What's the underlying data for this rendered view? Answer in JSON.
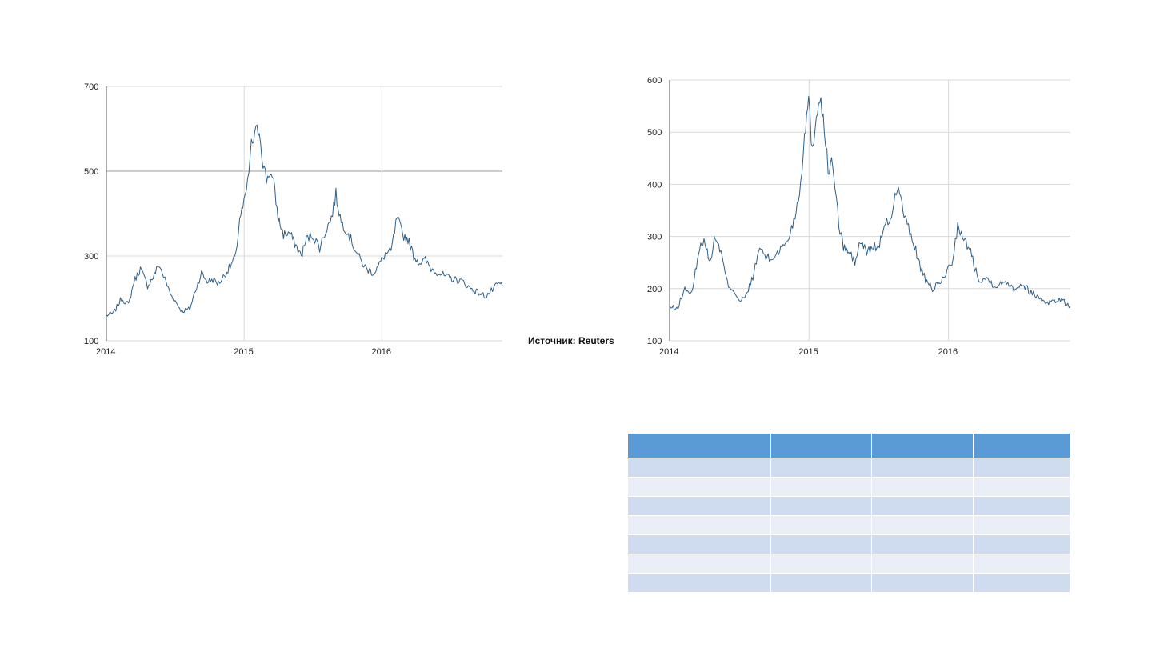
{
  "source_label": "Источник: Reuters",
  "colors": {
    "line": "#2f5f86",
    "grid": "#d9d9d9",
    "grid_major": "#9e9e9e",
    "table_header": "#5b9bd5",
    "table_odd": "#cfdbee",
    "table_even": "#e9eef7"
  },
  "chart_data": [
    {
      "type": "line",
      "xlim": [
        "2014-01-01",
        "2016-11-15"
      ],
      "ylim": [
        100,
        700
      ],
      "x_ticks": [
        "2014",
        "2015",
        "2016"
      ],
      "y_ticks": [
        100,
        300,
        500,
        700
      ],
      "grid": true,
      "series": [
        {
          "x": [
            "2014-01-01",
            "2014-01-20",
            "2014-02-10",
            "2014-03-01",
            "2014-03-15",
            "2014-04-01",
            "2014-04-20",
            "2014-05-05",
            "2014-05-20",
            "2014-06-05",
            "2014-06-20",
            "2014-07-05",
            "2014-07-20",
            "2014-08-10",
            "2014-08-25",
            "2014-09-10",
            "2014-09-25",
            "2014-10-10",
            "2014-10-25",
            "2014-11-10",
            "2014-11-25",
            "2014-12-10",
            "2014-12-20",
            "2014-12-31",
            "2015-01-10",
            "2015-01-20",
            "2015-02-01",
            "2015-02-10",
            "2015-02-20",
            "2015-03-01",
            "2015-03-10",
            "2015-03-20",
            "2015-04-01",
            "2015-04-15",
            "2015-05-01",
            "2015-05-15",
            "2015-06-01",
            "2015-06-15",
            "2015-07-01",
            "2015-07-20",
            "2015-08-05",
            "2015-08-20",
            "2015-09-01",
            "2015-09-15",
            "2015-10-01",
            "2015-10-20",
            "2015-11-05",
            "2015-11-20",
            "2015-12-10",
            "2015-12-25",
            "2016-01-10",
            "2016-01-25",
            "2016-02-10",
            "2016-02-25",
            "2016-03-10",
            "2016-03-25",
            "2016-04-10",
            "2016-04-25",
            "2016-05-10",
            "2016-06-01",
            "2016-06-20",
            "2016-07-10",
            "2016-08-01",
            "2016-08-20",
            "2016-09-10",
            "2016-10-01",
            "2016-10-20",
            "2016-11-05",
            "2016-11-15"
          ],
          "y": [
            160,
            165,
            200,
            185,
            240,
            270,
            230,
            250,
            280,
            245,
            210,
            190,
            170,
            175,
            220,
            260,
            240,
            245,
            235,
            255,
            275,
            300,
            390,
            420,
            470,
            560,
            590,
            600,
            520,
            480,
            500,
            470,
            390,
            350,
            355,
            330,
            300,
            340,
            350,
            320,
            360,
            390,
            445,
            380,
            360,
            320,
            290,
            270,
            260,
            280,
            305,
            310,
            390,
            350,
            340,
            300,
            285,
            290,
            270,
            260,
            250,
            245,
            240,
            225,
            215,
            205,
            220,
            235,
            230
          ]
        }
      ]
    },
    {
      "type": "line",
      "xlim": [
        "2014-01-01",
        "2016-11-15"
      ],
      "ylim": [
        100,
        600
      ],
      "x_ticks": [
        "2014",
        "2015",
        "2016"
      ],
      "y_ticks": [
        100,
        200,
        300,
        400,
        500,
        600
      ],
      "grid": true,
      "series": [
        {
          "x": [
            "2014-01-01",
            "2014-01-20",
            "2014-02-10",
            "2014-03-01",
            "2014-03-15",
            "2014-04-01",
            "2014-04-15",
            "2014-05-01",
            "2014-05-15",
            "2014-06-01",
            "2014-06-20",
            "2014-07-05",
            "2014-07-20",
            "2014-08-10",
            "2014-08-25",
            "2014-09-10",
            "2014-09-25",
            "2014-10-10",
            "2014-10-25",
            "2014-11-10",
            "2014-11-25",
            "2014-12-10",
            "2014-12-20",
            "2014-12-31",
            "2015-01-10",
            "2015-01-20",
            "2015-02-01",
            "2015-02-10",
            "2015-02-20",
            "2015-03-01",
            "2015-03-10",
            "2015-03-20",
            "2015-04-01",
            "2015-04-15",
            "2015-05-01",
            "2015-05-15",
            "2015-06-01",
            "2015-06-15",
            "2015-07-01",
            "2015-07-20",
            "2015-08-05",
            "2015-08-20",
            "2015-09-01",
            "2015-09-15",
            "2015-10-01",
            "2015-10-20",
            "2015-11-05",
            "2015-11-20",
            "2015-12-10",
            "2015-12-25",
            "2016-01-10",
            "2016-01-25",
            "2016-02-10",
            "2016-02-25",
            "2016-03-10",
            "2016-03-25",
            "2016-04-10",
            "2016-04-25",
            "2016-05-10",
            "2016-06-01",
            "2016-06-20",
            "2016-07-10",
            "2016-08-01",
            "2016-08-20",
            "2016-09-10",
            "2016-10-01",
            "2016-10-20",
            "2016-11-05",
            "2016-11-15"
          ],
          "y": [
            165,
            160,
            200,
            190,
            260,
            300,
            250,
            300,
            270,
            210,
            195,
            175,
            185,
            230,
            280,
            260,
            255,
            270,
            280,
            300,
            340,
            400,
            500,
            560,
            460,
            540,
            570,
            500,
            430,
            440,
            400,
            320,
            280,
            270,
            250,
            290,
            270,
            280,
            280,
            320,
            340,
            400,
            360,
            320,
            290,
            240,
            210,
            200,
            210,
            230,
            250,
            320,
            290,
            280,
            240,
            215,
            220,
            210,
            205,
            215,
            200,
            210,
            195,
            185,
            175,
            175,
            180,
            170,
            165
          ]
        }
      ]
    }
  ],
  "table": {
    "header_cells": [
      "",
      "",
      "",
      ""
    ],
    "rows": [
      [
        "",
        "",
        "",
        ""
      ],
      [
        "",
        "",
        "",
        ""
      ],
      [
        "",
        "",
        "",
        ""
      ],
      [
        "",
        "",
        "",
        ""
      ],
      [
        "",
        "",
        "",
        ""
      ],
      [
        "",
        "",
        "",
        ""
      ],
      [
        "",
        "",
        "",
        ""
      ]
    ]
  }
}
